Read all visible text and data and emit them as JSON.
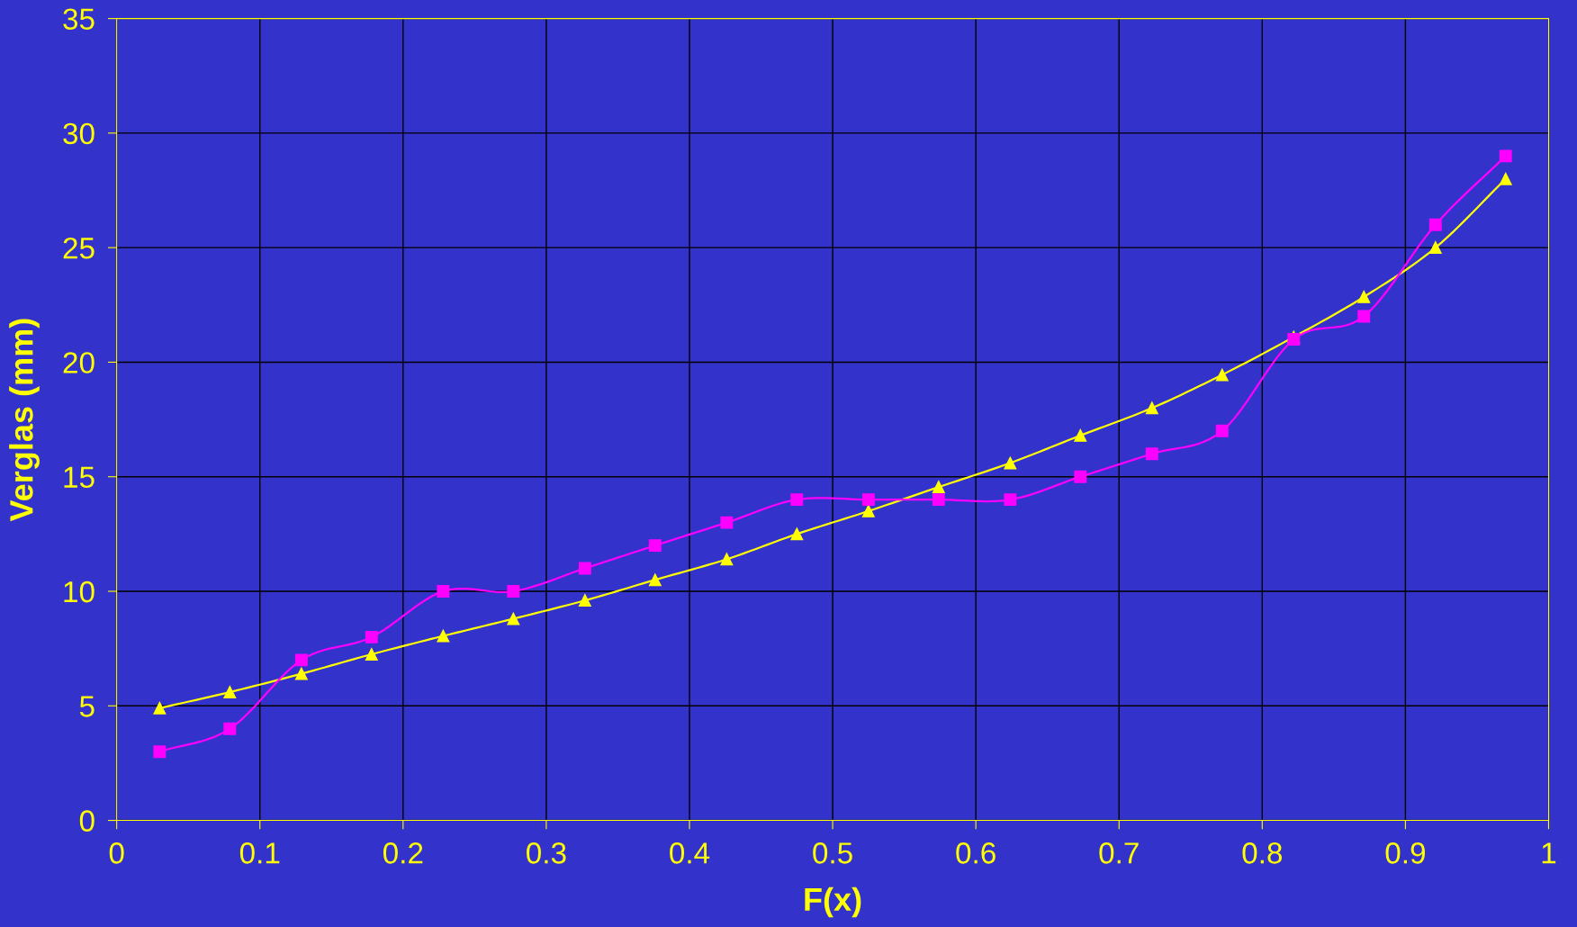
{
  "chart_data": {
    "type": "line",
    "xlabel": "F(x)",
    "ylabel": "Verglas (mm)",
    "xlim": [
      0,
      1
    ],
    "xticks": [
      0,
      0.1,
      0.2,
      0.3,
      0.4,
      0.5,
      0.6,
      0.7,
      0.8,
      0.9,
      1
    ],
    "ylim": [
      0,
      35
    ],
    "yticks": [
      0,
      5,
      10,
      15,
      20,
      25,
      30,
      35
    ],
    "grid": true,
    "legend": false,
    "x": [
      0.03,
      0.079,
      0.129,
      0.178,
      0.228,
      0.277,
      0.327,
      0.376,
      0.426,
      0.475,
      0.525,
      0.574,
      0.624,
      0.673,
      0.723,
      0.772,
      0.822,
      0.871,
      0.921,
      0.97
    ],
    "series": [
      {
        "color": "#ff00ff",
        "marker": "square",
        "values": [
          3,
          4,
          7,
          8,
          10,
          10,
          11,
          12,
          13,
          14,
          14,
          14,
          14,
          15,
          16,
          17,
          21,
          22,
          26,
          29
        ]
      },
      {
        "color": "#ffff00",
        "marker": "triangle",
        "values": [
          4.9,
          5.6,
          6.4,
          7.25,
          8.05,
          8.8,
          9.6,
          10.5,
          11.4,
          12.5,
          13.5,
          14.55,
          15.6,
          16.8,
          18.0,
          19.45,
          21.1,
          22.85,
          25.0,
          28.0
        ]
      }
    ]
  }
}
